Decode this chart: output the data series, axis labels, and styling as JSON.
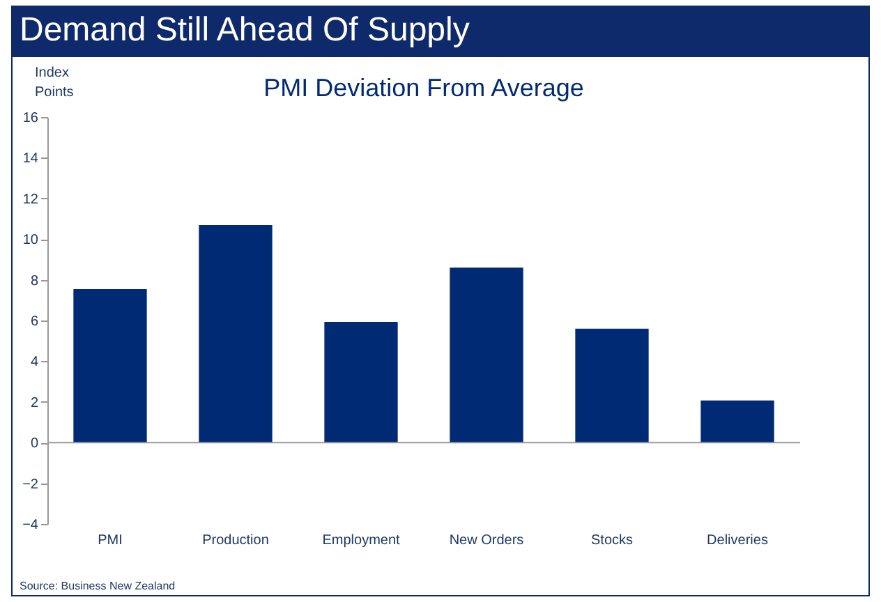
{
  "chart_data": {
    "type": "bar",
    "title": "Demand Still Ahead Of Supply",
    "subtitle": "PMI Deviation From Average",
    "ylabel": "Index Points",
    "categories": [
      "PMI",
      "Production",
      "Employment",
      "New Orders",
      "Stocks",
      "Deliveries"
    ],
    "values": [
      7.54,
      10.69,
      5.93,
      8.6,
      5.6,
      2.07
    ],
    "color": "#002a74",
    "ylim": [
      -4,
      16
    ],
    "yticks": [
      -4,
      -2,
      0,
      2,
      4,
      6,
      8,
      10,
      12,
      14,
      16
    ],
    "annotations": [
      "Source: Business New Zealand"
    ]
  }
}
